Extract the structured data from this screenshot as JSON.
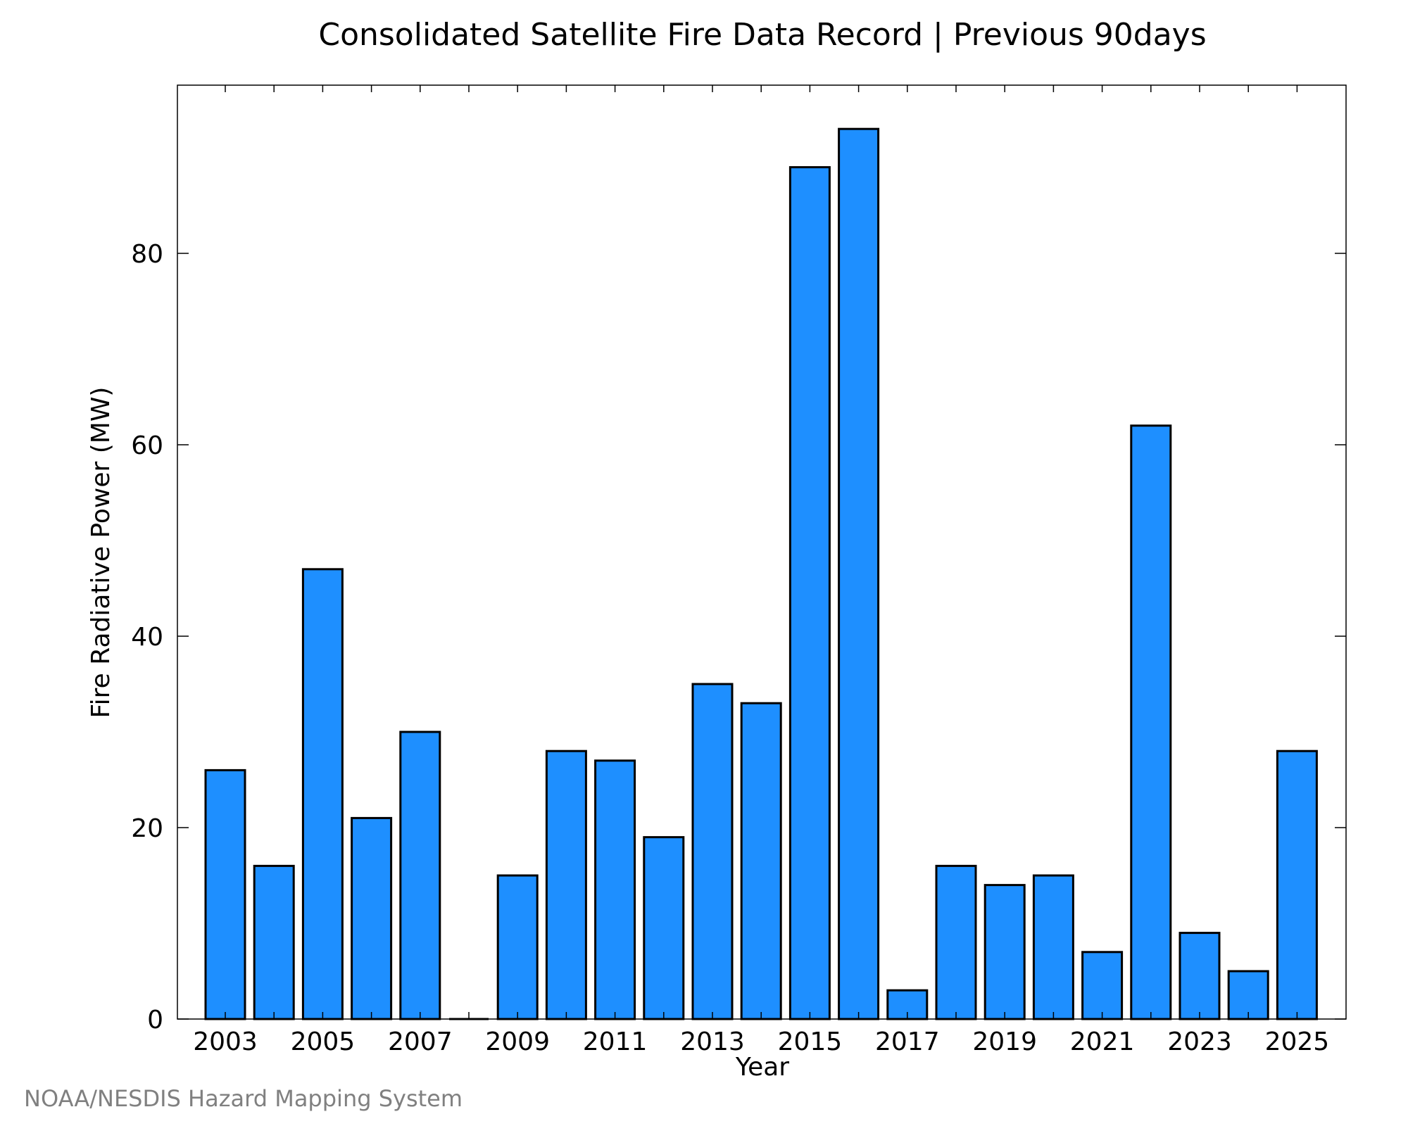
{
  "chart_data": {
    "type": "bar",
    "title": "Consolidated Satellite Fire Data Record | Previous 90days",
    "xlabel": "Year",
    "ylabel": "Fire Radiative Power (MW)",
    "categories": [
      "2003",
      "2004",
      "2005",
      "2006",
      "2007",
      "2008",
      "2009",
      "2010",
      "2011",
      "2012",
      "2013",
      "2014",
      "2015",
      "2016",
      "2017",
      "2018",
      "2019",
      "2020",
      "2021",
      "2022",
      "2023",
      "2024",
      "2025"
    ],
    "values": [
      26,
      16,
      47,
      21,
      30,
      0,
      15,
      28,
      27,
      19,
      35,
      33,
      89,
      93,
      3,
      16,
      14,
      15,
      7,
      62,
      9,
      5,
      28
    ],
    "x_tick_labels": [
      "2003",
      "2005",
      "2007",
      "2009",
      "2011",
      "2013",
      "2015",
      "2017",
      "2019",
      "2021",
      "2023",
      "2025"
    ],
    "y_ticks": [
      0,
      20,
      40,
      60,
      80
    ],
    "ylim": [
      0,
      97.6
    ],
    "bar_color": "#1e8fff",
    "grid": false,
    "legend": "none"
  },
  "credit": "NOAA/NESDIS Hazard Mapping System"
}
